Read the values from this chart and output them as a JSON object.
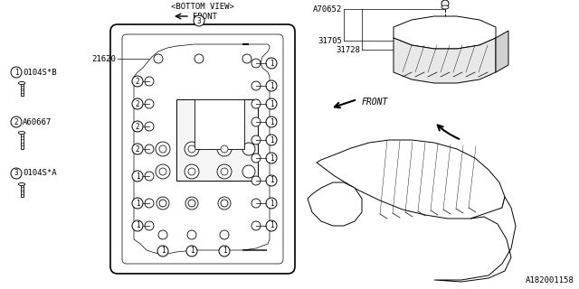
{
  "bg_color": "#ffffff",
  "line_color": "#000000",
  "diagram_id": "A182001158",
  "part1_code": "0104S*B",
  "part2_code": "A60667",
  "part3_code": "0104S*A",
  "part_31705": "31705",
  "part_31728": "31728",
  "part_A70652": "A70652",
  "part_21620": "21620",
  "bottom_view_text": "<BOTTOM VIEW>",
  "front_text": "FRONT",
  "font_size": 6.5
}
